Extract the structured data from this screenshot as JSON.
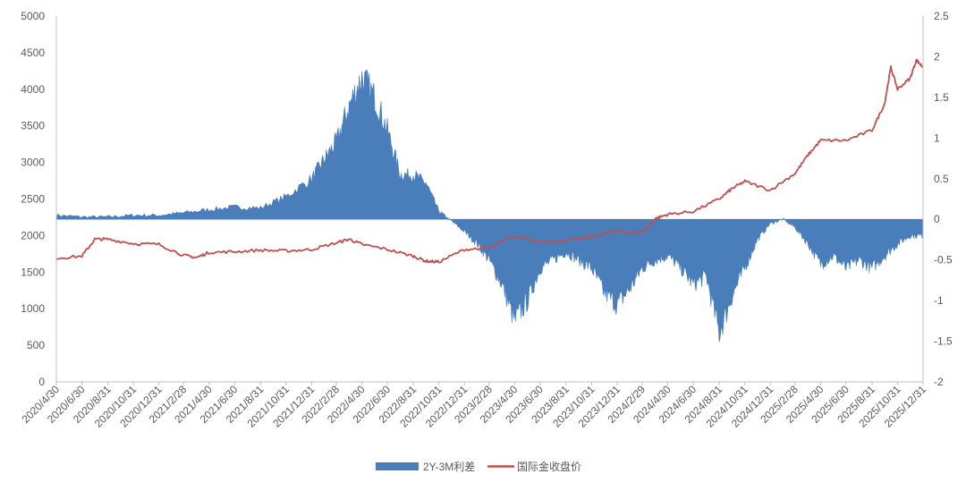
{
  "chart_data": {
    "type": "area",
    "title": "",
    "grid": false,
    "legend_position": "bottom",
    "colors": {
      "spread": "#4a7ebb",
      "gold": "#c0504d",
      "axis": "#bfbfbf",
      "text": "#595959"
    },
    "left_axis": {
      "ylim": [
        0,
        5000
      ],
      "ticks": [
        0,
        500,
        1000,
        1500,
        2000,
        2500,
        3000,
        3500,
        4000,
        4500,
        5000
      ]
    },
    "right_axis": {
      "ylim": [
        -2,
        2.5
      ],
      "ticks": [
        -2,
        -1.5,
        -1,
        -0.5,
        0,
        0.5,
        1,
        1.5,
        2,
        2.5
      ]
    },
    "x_tick_labels": [
      "2020/4/30",
      "2020/6/30",
      "2020/8/31",
      "2020/10/31",
      "2020/12/31",
      "2021/2/28",
      "2021/4/30",
      "2021/6/30",
      "2021/8/31",
      "2021/10/31",
      "2021/12/31",
      "2022/2/28",
      "2022/4/30",
      "2022/6/30",
      "2022/8/31",
      "2022/10/31",
      "2022/12/31",
      "2023/2/28",
      "2023/4/30",
      "2023/6/30",
      "2023/8/31",
      "2023/10/31",
      "2023/12/31",
      "2024/2/29",
      "2024/4/30",
      "2024/6/30",
      "2024/8/31",
      "2024/10/31",
      "2024/12/31",
      "2025/2/28",
      "2025/4/30",
      "2025/6/30",
      "2025/8/31",
      "2025/10/31",
      "2025/12/31"
    ],
    "series": [
      {
        "name": "2Y-3M利差",
        "axis": "right",
        "kind": "area",
        "dates": [
          "2020/4/30",
          "2020/6/30",
          "2020/8/31",
          "2020/10/31",
          "2020/12/31",
          "2021/2/28",
          "2021/4/30",
          "2021/6/30",
          "2021/8/31",
          "2021/10/31",
          "2021/12/31",
          "2022/1/31",
          "2022/2/28",
          "2022/3/31",
          "2022/4/30",
          "2022/5/31",
          "2022/6/30",
          "2022/7/31",
          "2022/8/31",
          "2022/9/30",
          "2022/10/31",
          "2022/11/30",
          "2022/12/31",
          "2023/1/31",
          "2023/2/28",
          "2023/3/31",
          "2023/4/30",
          "2023/5/31",
          "2023/6/30",
          "2023/7/31",
          "2023/8/31",
          "2023/9/30",
          "2023/10/31",
          "2023/11/30",
          "2023/12/31",
          "2024/1/31",
          "2024/2/29",
          "2024/3/31",
          "2024/4/30",
          "2024/5/31",
          "2024/6/30",
          "2024/7/31",
          "2024/8/31",
          "2024/9/30",
          "2024/10/31",
          "2024/11/30",
          "2024/12/31",
          "2025/1/31",
          "2025/2/28",
          "2025/3/31",
          "2025/4/30",
          "2025/5/31",
          "2025/6/30",
          "2025/7/31",
          "2025/8/31",
          "2025/9/30",
          "2025/10/31",
          "2025/11/30",
          "2025/12/31"
        ],
        "values": [
          0.05,
          0.03,
          0.03,
          0.05,
          0.05,
          0.08,
          0.12,
          0.15,
          0.14,
          0.28,
          0.5,
          0.75,
          0.95,
          1.4,
          1.75,
          1.5,
          1.1,
          0.55,
          0.55,
          0.45,
          0.1,
          -0.02,
          -0.15,
          -0.3,
          -0.5,
          -0.8,
          -1.25,
          -1.0,
          -0.6,
          -0.5,
          -0.4,
          -0.5,
          -0.6,
          -0.9,
          -1.05,
          -0.85,
          -0.6,
          -0.5,
          -0.45,
          -0.6,
          -0.8,
          -0.7,
          -1.4,
          -0.95,
          -0.6,
          -0.25,
          -0.05,
          0.0,
          -0.1,
          -0.3,
          -0.55,
          -0.45,
          -0.6,
          -0.5,
          -0.6,
          -0.45,
          -0.3,
          -0.2,
          -0.2
        ]
      },
      {
        "name": "国际金收盘价",
        "axis": "left",
        "kind": "line",
        "dates": [
          "2020/4/30",
          "2020/6/30",
          "2020/7/31",
          "2020/8/31",
          "2020/10/31",
          "2020/12/31",
          "2021/2/28",
          "2021/3/31",
          "2021/4/30",
          "2021/6/30",
          "2021/8/31",
          "2021/10/31",
          "2021/12/31",
          "2022/2/28",
          "2022/3/31",
          "2022/4/30",
          "2022/6/30",
          "2022/8/31",
          "2022/9/30",
          "2022/10/31",
          "2022/12/31",
          "2023/2/28",
          "2023/4/30",
          "2023/6/30",
          "2023/8/31",
          "2023/10/31",
          "2023/12/31",
          "2024/2/29",
          "2024/3/31",
          "2024/4/30",
          "2024/6/30",
          "2024/8/31",
          "2024/9/30",
          "2024/10/31",
          "2024/12/31",
          "2025/2/28",
          "2025/3/31",
          "2025/4/30",
          "2025/6/30",
          "2025/8/31",
          "2025/9/30",
          "2025/10/15",
          "2025/10/31",
          "2025/11/30",
          "2025/12/15",
          "2025/12/31"
        ],
        "values": [
          1690,
          1720,
          1950,
          1950,
          1890,
          1880,
          1730,
          1700,
          1770,
          1780,
          1800,
          1790,
          1810,
          1900,
          1950,
          1880,
          1810,
          1720,
          1650,
          1640,
          1810,
          1830,
          1990,
          1920,
          1920,
          1990,
          2060,
          2040,
          2230,
          2290,
          2330,
          2500,
          2640,
          2740,
          2620,
          2850,
          3100,
          3300,
          3300,
          3440,
          3800,
          4300,
          4000,
          4150,
          4400,
          4300
        ]
      }
    ]
  },
  "legend": [
    {
      "label": "2Y-3M利差",
      "color": "#4a7ebb"
    },
    {
      "label": "国际金收盘价",
      "color": "#c0504d"
    }
  ]
}
